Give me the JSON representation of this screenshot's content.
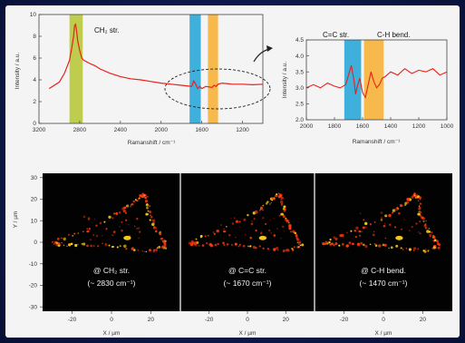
{
  "colors": {
    "spectrum_line": "#e8211c",
    "band_ch2": "#b8c93b",
    "band_cc": "#2aa8d8",
    "band_ch": "#f7b23a",
    "image_hot": "#ffd21a",
    "image_mid": "#ff3a10",
    "image_bg": "#020202"
  },
  "chart_data": [
    {
      "type": "line",
      "id": "full-spectrum",
      "ylabel": "Intensity / a.u.",
      "xlabel": "Ramanshift / cm⁻¹",
      "xlim": [
        3200,
        1000
      ],
      "ylim": [
        0,
        10
      ],
      "xticks": [
        "3200",
        "2800",
        "2400",
        "2000",
        "1600",
        "1200"
      ],
      "yticks": [
        "0",
        "2",
        "4",
        "6",
        "8",
        "10"
      ],
      "grid": false,
      "bands": [
        {
          "label": "CH₂ str.",
          "range": [
            2900,
            2770
          ]
        },
        {
          "label": "",
          "range": [
            1720,
            1610
          ]
        },
        {
          "label": "",
          "range": [
            1540,
            1440
          ]
        }
      ],
      "x": [
        3100,
        3000,
        2950,
        2900,
        2880,
        2860,
        2850,
        2840,
        2830,
        2820,
        2800,
        2780,
        2760,
        2700,
        2650,
        2600,
        2500,
        2400,
        2300,
        2200,
        2100,
        2000,
        1900,
        1800,
        1700,
        1680,
        1660,
        1640,
        1620,
        1600,
        1560,
        1500,
        1480,
        1460,
        1440,
        1400,
        1300,
        1200,
        1100,
        1000
      ],
      "y": [
        3.2,
        3.8,
        4.6,
        5.8,
        6.8,
        8.0,
        9.0,
        9.1,
        8.5,
        7.6,
        6.7,
        6.0,
        5.8,
        5.5,
        5.3,
        5.0,
        4.6,
        4.3,
        4.1,
        4.0,
        3.85,
        3.7,
        3.6,
        3.5,
        3.4,
        3.9,
        3.6,
        3.2,
        3.4,
        3.2,
        3.4,
        3.3,
        3.5,
        3.4,
        3.6,
        3.7,
        3.6,
        3.6,
        3.55,
        3.6
      ]
    },
    {
      "type": "line",
      "id": "zoom-spectrum",
      "ylabel": "Intensity / a.u.",
      "xlabel": "Ramanshift / cm⁻¹",
      "xlim": [
        2000,
        1000
      ],
      "ylim": [
        2.0,
        4.5
      ],
      "xticks": [
        "2000",
        "1800",
        "1600",
        "1400",
        "1200",
        "1000"
      ],
      "yticks": [
        "2.0",
        "2.5",
        "3.0",
        "3.5",
        "4.0",
        "4.5"
      ],
      "grid": false,
      "bands": [
        {
          "label": "C=C str.",
          "range": [
            1730,
            1610
          ]
        },
        {
          "label": "C-H bend.",
          "range": [
            1590,
            1450
          ]
        }
      ],
      "x": [
        2000,
        1950,
        1900,
        1850,
        1800,
        1760,
        1720,
        1700,
        1680,
        1660,
        1650,
        1640,
        1620,
        1600,
        1580,
        1560,
        1540,
        1520,
        1500,
        1480,
        1460,
        1440,
        1400,
        1350,
        1300,
        1250,
        1200,
        1150,
        1100,
        1050,
        1000
      ],
      "y": [
        3.0,
        3.1,
        3.0,
        3.15,
        3.05,
        3.0,
        3.1,
        3.4,
        3.7,
        3.2,
        2.8,
        3.0,
        3.3,
        2.85,
        2.7,
        3.1,
        3.5,
        3.2,
        3.0,
        3.1,
        3.3,
        3.35,
        3.5,
        3.4,
        3.6,
        3.45,
        3.55,
        3.5,
        3.6,
        3.4,
        3.5
      ]
    },
    {
      "type": "heatmap",
      "id": "raman-images",
      "ylabel": "Y / µm",
      "xlabel": "X / µm",
      "xlim": [
        -35,
        35
      ],
      "ylim": [
        -32,
        32
      ],
      "yticks": [
        "30",
        "20",
        "10",
        "0",
        "-10",
        "-20",
        "-30"
      ],
      "xticks": [
        "-20",
        "0",
        "20"
      ],
      "panels": [
        {
          "caption_line1": "@ CH₂ str.",
          "caption_line2": "(~ 2830 cm⁻¹)"
        },
        {
          "caption_line1": "@ C=C str.",
          "caption_line2": "(~ 1670 cm⁻¹)"
        },
        {
          "caption_line1": "@ C-H bend.",
          "caption_line2": "(~ 1470 cm⁻¹)"
        }
      ],
      "outline": [
        [
          -30,
          0
        ],
        [
          -15,
          5
        ],
        [
          5,
          14
        ],
        [
          12,
          19
        ],
        [
          16,
          22
        ],
        [
          18,
          21
        ],
        [
          19,
          14
        ],
        [
          22,
          7
        ],
        [
          26,
          2
        ],
        [
          28,
          -2
        ],
        [
          20,
          -4
        ],
        [
          5,
          -2
        ],
        [
          -10,
          -1
        ],
        [
          -25,
          -1
        ],
        [
          -30,
          0
        ]
      ]
    }
  ]
}
